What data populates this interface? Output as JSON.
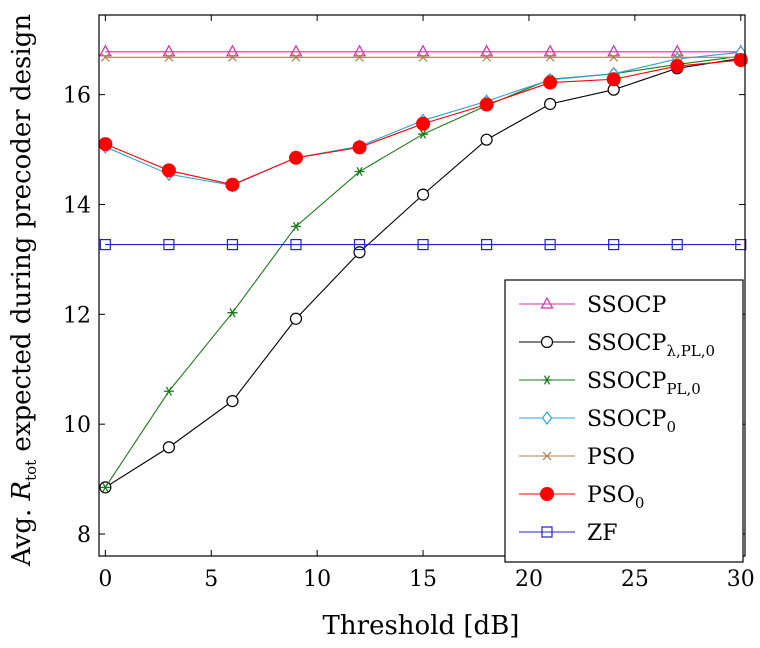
{
  "chart_data": {
    "type": "line",
    "title": "",
    "xlabel": "Threshold [dB]",
    "ylabel_prefix": "Avg. ",
    "ylabel_symbol": "R",
    "ylabel_subscript": "tot",
    "ylabel_suffix": " expected during precoder design",
    "xlim": [
      -0.3,
      30.2
    ],
    "ylim": [
      7.6,
      17.45
    ],
    "xticks": [
      0,
      5,
      10,
      15,
      20,
      25,
      30
    ],
    "yticks": [
      8,
      10,
      12,
      14,
      16
    ],
    "grid": false,
    "legend_position": "bottom-right",
    "x": [
      0,
      3,
      6,
      9,
      12,
      15,
      18,
      21,
      24,
      27,
      30
    ],
    "series": [
      {
        "name": "SSOCP",
        "sub": "",
        "color": "#d62fa5",
        "marker": "triangle",
        "values": [
          16.78,
          16.78,
          16.78,
          16.78,
          16.78,
          16.78,
          16.78,
          16.78,
          16.78,
          16.78,
          16.78
        ]
      },
      {
        "name": "SSOCP",
        "sub": "λ,PL,0",
        "color": "#000000",
        "marker": "circle-open",
        "values": [
          8.85,
          9.58,
          10.42,
          11.92,
          13.13,
          14.18,
          15.18,
          15.83,
          16.09,
          16.48,
          16.66
        ]
      },
      {
        "name": "SSOCP",
        "sub": "PL,0",
        "color": "#1c7a1c",
        "marker": "asterisk",
        "values": [
          8.85,
          10.6,
          12.03,
          13.6,
          14.6,
          15.28,
          15.8,
          16.28,
          16.38,
          16.55,
          16.7
        ]
      },
      {
        "name": "SSOCP",
        "sub": "0",
        "color": "#2aa4d5",
        "marker": "diamond",
        "values": [
          15.05,
          14.55,
          14.35,
          14.85,
          15.06,
          15.53,
          15.88,
          16.27,
          16.38,
          16.65,
          16.77
        ]
      },
      {
        "name": "PSO",
        "sub": "",
        "color": "#b08050",
        "marker": "x",
        "values": [
          16.68,
          16.68,
          16.68,
          16.68,
          16.68,
          16.68,
          16.68,
          16.68,
          16.68,
          16.68,
          16.68
        ]
      },
      {
        "name": "PSO",
        "sub": "0",
        "color": "#ff0000",
        "marker": "circle-filled",
        "values": [
          15.1,
          14.62,
          14.36,
          14.85,
          15.04,
          15.47,
          15.82,
          16.22,
          16.28,
          16.52,
          16.63
        ]
      },
      {
        "name": "ZF",
        "sub": "",
        "color": "#2222cc",
        "marker": "square",
        "values": [
          13.27,
          13.27,
          13.27,
          13.27,
          13.27,
          13.27,
          13.27,
          13.27,
          13.27,
          13.27,
          13.27
        ]
      }
    ]
  }
}
